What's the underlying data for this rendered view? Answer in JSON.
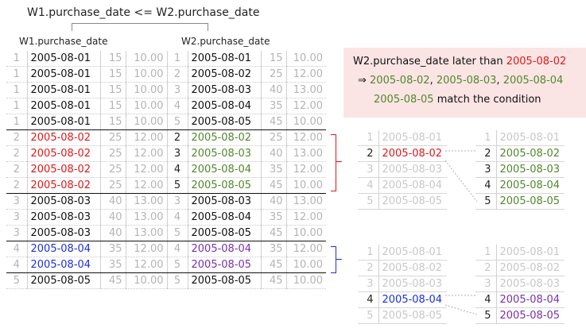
{
  "title": "W1.purchase_date <= W2.purchase_date",
  "w1_label": "W1.purchase_date",
  "w2_label": "W2.purchase_date",
  "grid_rows": [
    [
      "1",
      "2005-08-01",
      "15",
      "10.00",
      "1",
      "2005-08-01",
      "15",
      "10.00"
    ],
    [
      "1",
      "2005-08-01",
      "15",
      "10.00",
      "2",
      "2005-08-02",
      "25",
      "12.00"
    ],
    [
      "1",
      "2005-08-01",
      "15",
      "10.00",
      "3",
      "2005-08-03",
      "40",
      "13.00"
    ],
    [
      "1",
      "2005-08-01",
      "15",
      "10.00",
      "4",
      "2005-08-04",
      "35",
      "12.00"
    ],
    [
      "1",
      "2005-08-01",
      "15",
      "10.00",
      "5",
      "2005-08-05",
      "45",
      "10.00"
    ],
    [
      "2",
      "2005-08-02",
      "25",
      "12.00",
      "2",
      "2005-08-02",
      "25",
      "12.00"
    ],
    [
      "2",
      "2005-08-02",
      "25",
      "12.00",
      "3",
      "2005-08-03",
      "40",
      "13.00"
    ],
    [
      "2",
      "2005-08-02",
      "25",
      "12.00",
      "4",
      "2005-08-04",
      "35",
      "12.00"
    ],
    [
      "2",
      "2005-08-02",
      "25",
      "12.00",
      "5",
      "2005-08-05",
      "45",
      "10.00"
    ],
    [
      "3",
      "2005-08-03",
      "40",
      "13.00",
      "3",
      "2005-08-03",
      "40",
      "13.00"
    ],
    [
      "3",
      "2005-08-03",
      "40",
      "13.00",
      "4",
      "2005-08-04",
      "35",
      "12.00"
    ],
    [
      "3",
      "2005-08-03",
      "40",
      "13.00",
      "5",
      "2005-08-05",
      "45",
      "10.00"
    ],
    [
      "4",
      "2005-08-04",
      "35",
      "12.00",
      "4",
      "2005-08-04",
      "35",
      "12.00"
    ],
    [
      "4",
      "2005-08-04",
      "35",
      "12.00",
      "5",
      "2005-08-05",
      "45",
      "10.00"
    ],
    [
      "5",
      "2005-08-05",
      "45",
      "10.00",
      "5",
      "2005-08-05",
      "45",
      "10.00"
    ]
  ],
  "note": {
    "line1_prefix": "W2.purchase_date later than ",
    "line1_date": "2005-08-02",
    "arrow": "⇒ ",
    "line2_d1": "2005-08-02",
    "sep": ", ",
    "line2_d2": "2005-08-03",
    "line2_d3": "2005-08-04",
    "line3_d4": "2005-08-05",
    "line3_suffix": " match the condition"
  },
  "mini1_left": [
    [
      "1",
      "2005-08-01"
    ],
    [
      "2",
      "2005-08-02"
    ],
    [
      "3",
      "2005-08-03"
    ],
    [
      "4",
      "2005-08-04"
    ],
    [
      "5",
      "2005-08-05"
    ]
  ],
  "mini1_right": [
    [
      "1",
      "2005-08-01"
    ],
    [
      "2",
      "2005-08-02"
    ],
    [
      "3",
      "2005-08-03"
    ],
    [
      "4",
      "2005-08-04"
    ],
    [
      "5",
      "2005-08-05"
    ]
  ],
  "mini2_left": [
    [
      "1",
      "2005-08-01"
    ],
    [
      "2",
      "2005-08-02"
    ],
    [
      "3",
      "2005-08-03"
    ],
    [
      "4",
      "2005-08-04"
    ],
    [
      "5",
      "2005-08-05"
    ]
  ],
  "mini2_right": [
    [
      "1",
      "2005-08-01"
    ],
    [
      "2",
      "2005-08-02"
    ],
    [
      "3",
      "2005-08-03"
    ],
    [
      "4",
      "2005-08-04"
    ],
    [
      "5",
      "2005-08-05"
    ]
  ],
  "colors": {
    "red": "#e01818",
    "green": "#50882c",
    "blue": "#1a30e0",
    "purple": "#7a2eb0",
    "note_bg": "#fbe4e4"
  }
}
